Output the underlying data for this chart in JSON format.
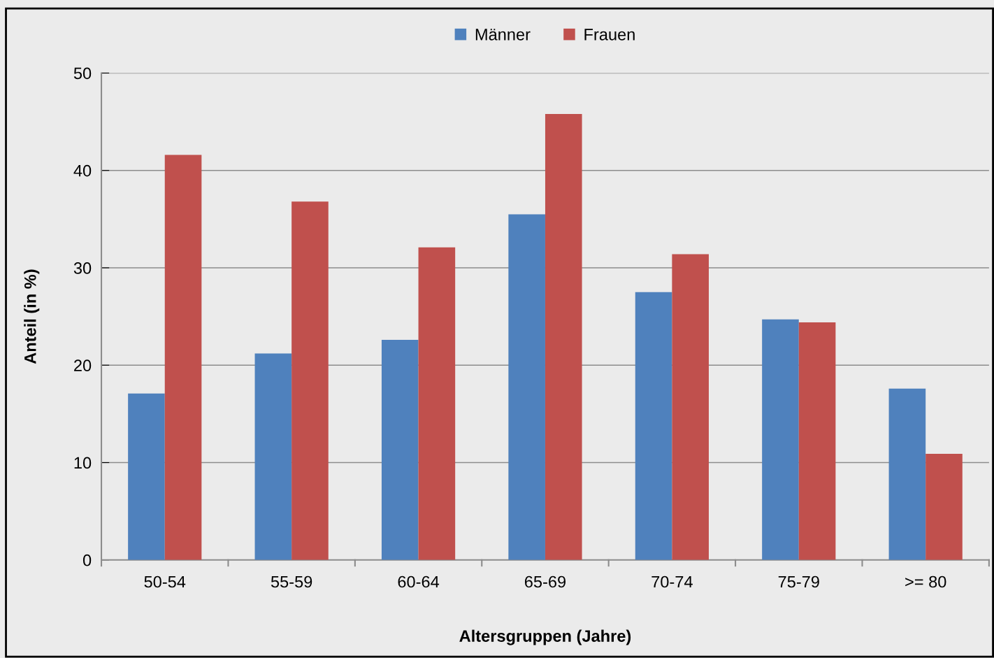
{
  "chart_data": {
    "type": "bar",
    "xlabel": "Altersgruppen (Jahre)",
    "ylabel": "Anteil (in %)",
    "categories": [
      "50-54",
      "55-59",
      "60-64",
      "65-69",
      "70-74",
      "75-79",
      ">= 80"
    ],
    "series": [
      {
        "name": "Männer",
        "color": "#4f81bd",
        "values": [
          17.1,
          21.2,
          22.6,
          35.5,
          27.5,
          24.7,
          17.6
        ]
      },
      {
        "name": "Frauen",
        "color": "#c0504d",
        "values": [
          41.6,
          36.8,
          32.1,
          45.8,
          31.4,
          24.4,
          10.9
        ]
      }
    ],
    "ylim": [
      0,
      50
    ],
    "yticks": [
      0,
      10,
      20,
      30,
      40,
      50
    ],
    "grid": "y",
    "legend": "top"
  }
}
